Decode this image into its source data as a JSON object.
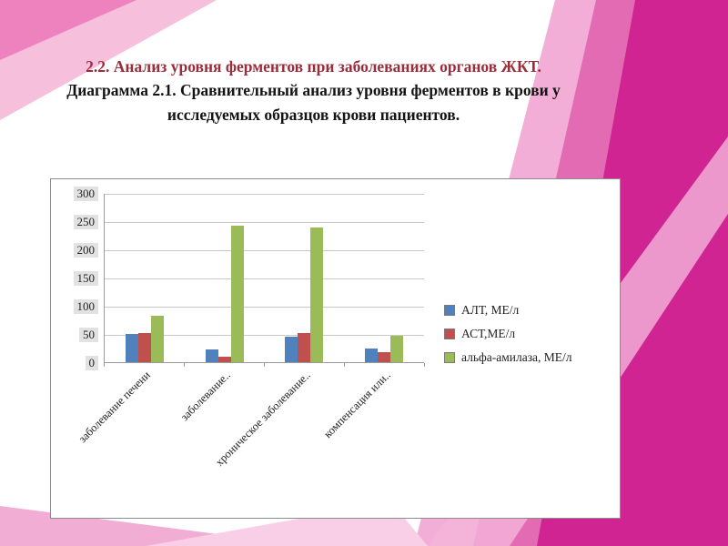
{
  "slide": {
    "title": "2.2. Анализ уровня ферментов при заболеваниях органов ЖКТ.",
    "subtitle": "Диаграмма 2.1. Сравнительный анализ уровня ферментов в крови у исследуемых образцов крови пациентов.",
    "title_color": "#9b2c3a"
  },
  "chart_data": {
    "type": "bar",
    "title": "Диаграмма 2.1. Сравнительный анализ уровня ферментов в крови",
    "categories": [
      "заболевание печени",
      "заболевание..",
      "хроническое заболевание..",
      "компенсация или.."
    ],
    "series": [
      {
        "name": "АЛТ, МЕ/л",
        "color": "#4f81bd",
        "values": [
          50,
          23,
          45,
          24
        ]
      },
      {
        "name": "АСТ,МЕ/л",
        "color": "#c0504d",
        "values": [
          52,
          9,
          51,
          18
        ]
      },
      {
        "name": "альфа-амилаза, МЕ/л",
        "color": "#9bbb59",
        "values": [
          82,
          242,
          238,
          46
        ]
      }
    ],
    "xlabel": "",
    "ylabel": "",
    "ylim": [
      0,
      300
    ],
    "yticks": [
      0,
      50,
      100,
      150,
      200,
      250,
      300
    ],
    "grid": true,
    "legend_position": "right"
  }
}
